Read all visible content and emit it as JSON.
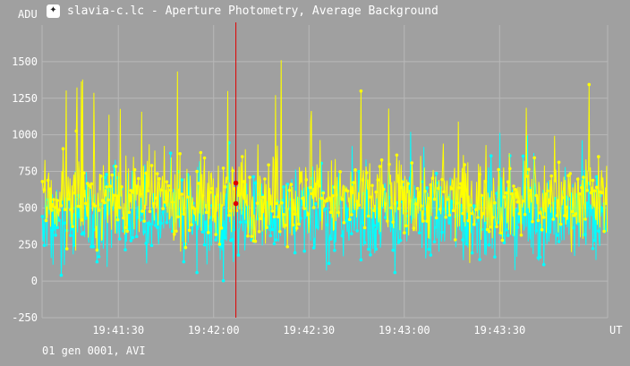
{
  "window": {
    "title": "slavia-c.lc - Aperture Photometry, Average Background",
    "icon": "photometry-app-icon"
  },
  "footer": "01 gen 0001, AVI",
  "colors": {
    "background": "#a0a0a0",
    "grid": "#b8b8b8",
    "series_cyan": "#00ffff",
    "series_yellow": "#ffff00",
    "cursor": "#e00000",
    "text": "#ffffff"
  },
  "chart_data": {
    "type": "line",
    "xlabel": "UT",
    "ylabel": "ADU",
    "ylim": [
      -250,
      1750
    ],
    "yticks": [
      -250,
      0,
      250,
      500,
      750,
      1000,
      1250,
      1500
    ],
    "xlim": [
      "19:41:06",
      "19:44:04"
    ],
    "xticks": [
      "19:41:30",
      "19:42:00",
      "19:42:30",
      "19:43:00",
      "19:43:30"
    ],
    "grid": true,
    "cursor": {
      "x": "19:42:07",
      "values": [
        670,
        530
      ]
    },
    "series": [
      {
        "color": "#00ffff",
        "mean": 440,
        "spread": 150,
        "min": -80,
        "max": 1020
      },
      {
        "color": "#ffff00",
        "mean": 560,
        "spread": 140,
        "min": 30,
        "max": 1510
      }
    ]
  }
}
